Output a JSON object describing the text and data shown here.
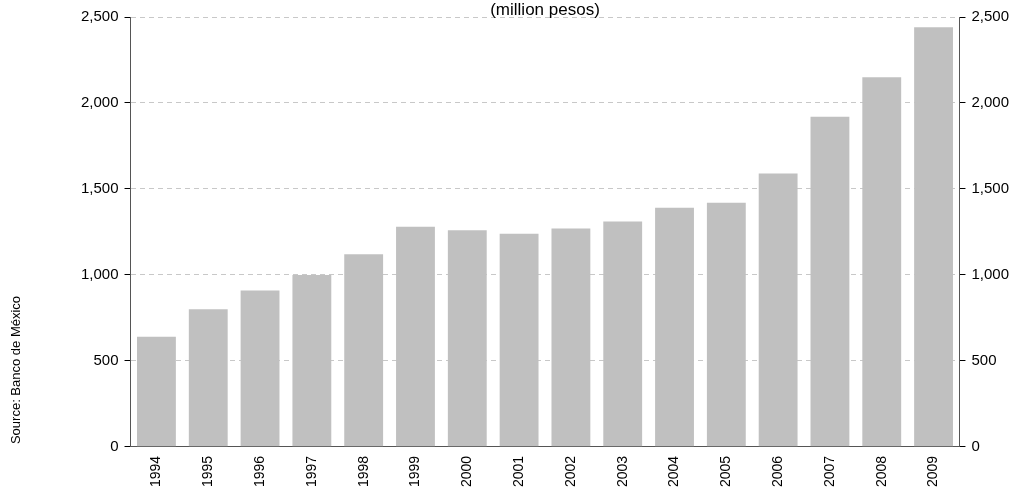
{
  "chart_data": {
    "type": "bar",
    "subtitle": "(million pesos)",
    "categories": [
      "1994",
      "1995",
      "1996",
      "1997",
      "1998",
      "1999",
      "2000",
      "2001",
      "2002",
      "2003",
      "2004",
      "2005",
      "2006",
      "2007",
      "2008",
      "2009"
    ],
    "series": [
      {
        "color": "#c0c0c0",
        "values": [
          640,
          800,
          910,
          1000,
          1120,
          1280,
          1260,
          1240,
          1270,
          1310,
          1390,
          1420,
          1590,
          1920,
          2150,
          2440
        ]
      }
    ],
    "ylim": [
      0,
      2500
    ],
    "yticks": [
      0,
      {
        "value": 500,
        "label": "500"
      },
      {
        "value": 1000,
        "label": "1,000"
      },
      {
        "value": 1500,
        "label": "1,500"
      },
      {
        "value": 2000,
        "label": "2,000"
      },
      {
        "value": 2500,
        "label": "2,500"
      }
    ],
    "y2lim": [
      0,
      2500
    ],
    "y2ticks": [
      0,
      {
        "value": 500,
        "label": "500"
      },
      {
        "value": 1000,
        "label": "1,000"
      },
      {
        "value": 1500,
        "label": "1,500"
      },
      {
        "value": 2000,
        "label": "2,000"
      },
      {
        "value": 2500,
        "label": "2,500"
      }
    ],
    "grid": "y",
    "line_style": "dashed",
    "legend": false,
    "annotations": [
      "Source: Banco de México"
    ]
  }
}
